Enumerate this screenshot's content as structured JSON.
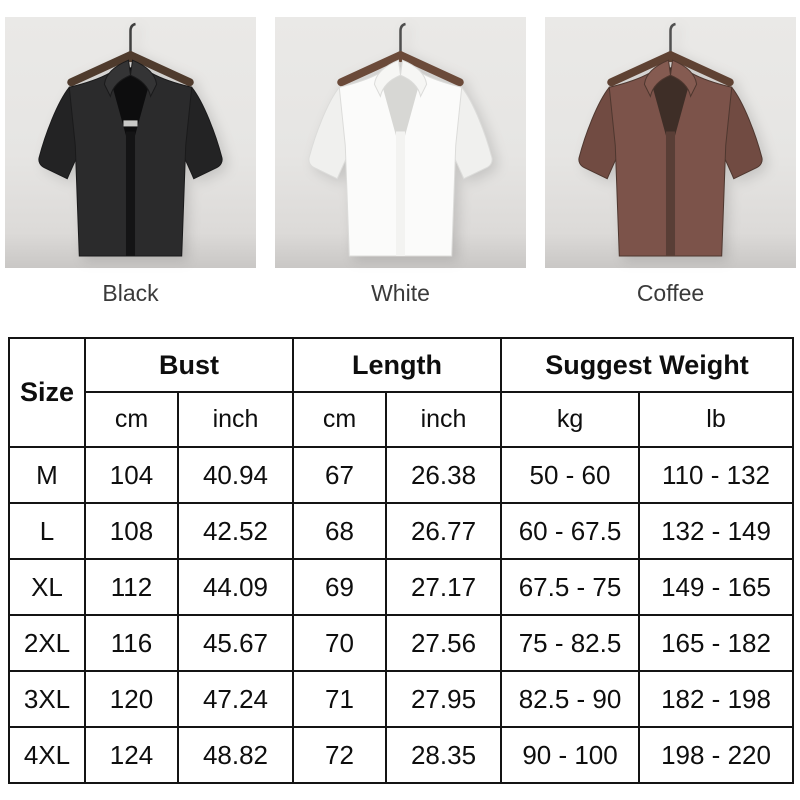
{
  "products": [
    {
      "label": "Black",
      "colors": {
        "body": "#2b2b2c",
        "sleeve": "#232324",
        "collar": "#343435",
        "inner": "#0d0d0e",
        "placket": "#141415",
        "line": "#1a1a1b",
        "tag": "#c9c9c7",
        "wood": "#4f3b2d",
        "hook": "#3f3f3f"
      }
    },
    {
      "label": "White",
      "colors": {
        "body": "#fbfbfa",
        "sleeve": "#f0f0ee",
        "collar": "#f6f6f4",
        "inner": "#d7d7d4",
        "placket": "#f3f3f1",
        "line": "#dcdcda",
        "tag": "transparent",
        "wood": "#6b4a39",
        "hook": "#4e4e4e"
      }
    },
    {
      "label": "Coffee",
      "colors": {
        "body": "#7c534a",
        "sleeve": "#714b42",
        "collar": "#855b51",
        "inner": "#3e2e27",
        "placket": "#593e36",
        "line": "#4e372f",
        "tag": "transparent",
        "wood": "#5f4233",
        "hook": "#505050"
      }
    }
  ],
  "chart_data": {
    "type": "table",
    "title": "",
    "header_groups": [
      {
        "label": "Size"
      },
      {
        "label": "Bust"
      },
      {
        "label": "Length"
      },
      {
        "label": "Suggest Weight"
      }
    ],
    "unit_row": [
      "cm",
      "inch",
      "cm",
      "inch",
      "kg",
      "lb"
    ],
    "rows": [
      [
        "M",
        "104",
        "40.94",
        "67",
        "26.38",
        "50 - 60",
        "110 - 132"
      ],
      [
        "L",
        "108",
        "42.52",
        "68",
        "26.77",
        "60 - 67.5",
        "132 - 149"
      ],
      [
        "XL",
        "112",
        "44.09",
        "69",
        "27.17",
        "67.5 - 75",
        "149 - 165"
      ],
      [
        "2XL",
        "116",
        "45.67",
        "70",
        "27.56",
        "75 - 82.5",
        "165 - 182"
      ],
      [
        "3XL",
        "120",
        "47.24",
        "71",
        "27.95",
        "82.5 - 90",
        "182 - 198"
      ],
      [
        "4XL",
        "124",
        "48.82",
        "72",
        "28.35",
        "90 - 100",
        "198 - 220"
      ]
    ]
  },
  "style_colors": {
    "table_border": "#141414",
    "table_text": "#0e0e0e",
    "caption_text": "#3a3a3a",
    "photo_bg": "#e6e5e3"
  }
}
